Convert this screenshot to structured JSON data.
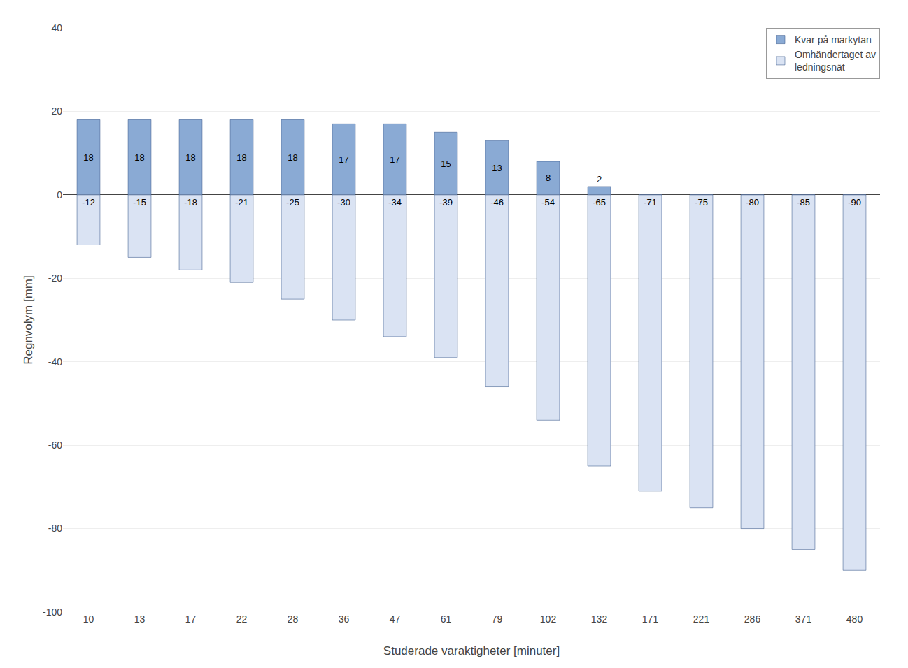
{
  "chart_data": {
    "type": "bar",
    "xlabel": "Studerade varaktigheter [minuter]",
    "ylabel": "Regnvolym [mm]",
    "categories": [
      10,
      13,
      17,
      22,
      28,
      36,
      47,
      61,
      79,
      102,
      132,
      171,
      221,
      286,
      371,
      480
    ],
    "series": [
      {
        "name": "Kvar på markytan",
        "color": "#8AAAD4",
        "values": [
          18,
          18,
          18,
          18,
          18,
          17,
          17,
          15,
          13,
          8,
          2,
          0,
          0,
          0,
          0,
          0
        ]
      },
      {
        "name": "Omhändertaget av\nledningsnät",
        "color": "#DAE3F3",
        "values": [
          -12,
          -15,
          -18,
          -21,
          -25,
          -30,
          -34,
          -39,
          -46,
          -54,
          -65,
          -71,
          -75,
          -80,
          -85,
          -90
        ]
      }
    ],
    "ylim": [
      -100,
      40
    ],
    "yticks": [
      -100,
      -80,
      -60,
      -40,
      -20,
      0,
      20,
      40
    ],
    "grid": true,
    "legend": "upper right",
    "data_labels": true
  }
}
